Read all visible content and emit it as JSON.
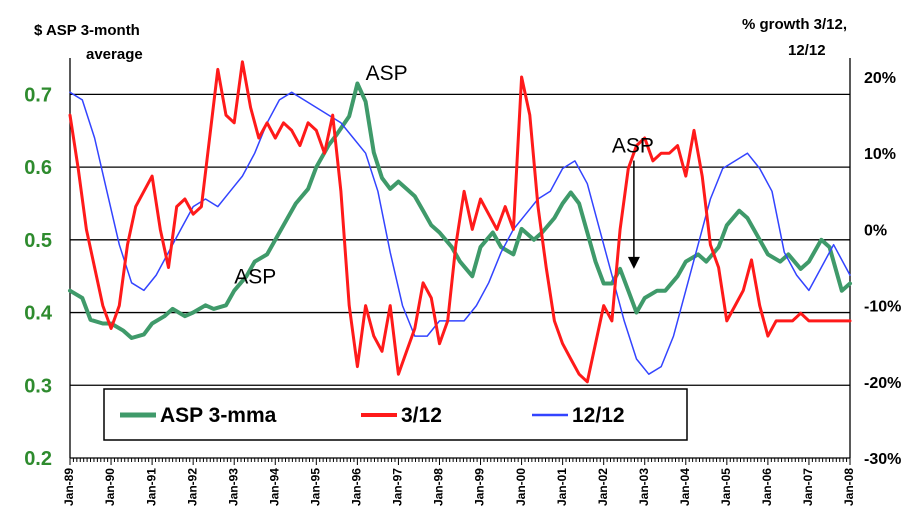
{
  "chart_data": {
    "type": "line",
    "title": "",
    "y_left_label": [
      "$ ASP 3-month",
      "average"
    ],
    "y_right_label": [
      "% growth 3/12,",
      "12/12"
    ],
    "xlabel": "",
    "y_left_lim": [
      0.2,
      0.75
    ],
    "y_left_ticks": [
      "0.2",
      "0.3",
      "0.4",
      "0.5",
      "0.6",
      "0.7"
    ],
    "y_right_lim": [
      -30,
      22.5
    ],
    "y_right_ticks": [
      "-30%",
      "-20%",
      "-10%",
      "0%",
      "10%",
      "20%"
    ],
    "x_ticks": [
      "Jan-89",
      "Jan-90",
      "Jan-91",
      "Jan-92",
      "Jan-93",
      "Jan-94",
      "Jan-95",
      "Jan-96",
      "Jan-97",
      "Jan-98",
      "Jan-99",
      "Jan-00",
      "Jan-01",
      "Jan-02",
      "Jan-03",
      "Jan-04",
      "Jan-05",
      "Jan-06",
      "Jan-07",
      "Jan-08"
    ],
    "x_range": [
      1989.0,
      2008.0
    ],
    "grid": "horizontal",
    "legend_position": "bottom-left",
    "colors": {
      "asp": "#3f9a6a",
      "g312": "#ff1a1a",
      "g1212": "#3344ff",
      "axis_left": "#2e8b2e"
    },
    "annotations": [
      {
        "text": "ASP",
        "x": 1996.2,
        "y": 0.72,
        "axis": "left"
      },
      {
        "text": "ASP",
        "x": 1993.0,
        "y": 0.44,
        "axis": "left"
      },
      {
        "text": "ASP",
        "x": 2002.2,
        "y": 0.62,
        "axis": "left",
        "arrow_to": 0.46
      }
    ],
    "series": [
      {
        "name": "ASP 3-mma",
        "axis": "left",
        "x": [
          1989.0,
          1989.3,
          1989.5,
          1989.8,
          1990.0,
          1990.3,
          1990.5,
          1990.8,
          1991.0,
          1991.3,
          1991.5,
          1991.8,
          1992.0,
          1992.3,
          1992.5,
          1992.8,
          1993.0,
          1993.3,
          1993.5,
          1993.8,
          1994.0,
          1994.3,
          1994.5,
          1994.8,
          1995.0,
          1995.3,
          1995.5,
          1995.8,
          1996.0,
          1996.2,
          1996.4,
          1996.6,
          1996.8,
          1997.0,
          1997.2,
          1997.4,
          1997.6,
          1997.8,
          1998.0,
          1998.3,
          1998.5,
          1998.8,
          1999.0,
          1999.3,
          1999.5,
          1999.8,
          2000.0,
          2000.3,
          2000.5,
          2000.8,
          2001.0,
          2001.2,
          2001.4,
          2001.6,
          2001.8,
          2002.0,
          2002.2,
          2002.4,
          2002.6,
          2002.8,
          2003.0,
          2003.3,
          2003.5,
          2003.8,
          2004.0,
          2004.3,
          2004.5,
          2004.8,
          2005.0,
          2005.3,
          2005.5,
          2005.8,
          2006.0,
          2006.3,
          2006.5,
          2006.8,
          2007.0,
          2007.3,
          2007.5,
          2007.8,
          2008.0
        ],
        "values": [
          0.43,
          0.42,
          0.39,
          0.385,
          0.385,
          0.375,
          0.365,
          0.37,
          0.385,
          0.395,
          0.405,
          0.395,
          0.4,
          0.41,
          0.405,
          0.41,
          0.43,
          0.45,
          0.47,
          0.48,
          0.5,
          0.53,
          0.55,
          0.57,
          0.6,
          0.63,
          0.645,
          0.67,
          0.715,
          0.69,
          0.62,
          0.585,
          0.57,
          0.58,
          0.57,
          0.56,
          0.54,
          0.52,
          0.51,
          0.49,
          0.47,
          0.45,
          0.49,
          0.51,
          0.49,
          0.48,
          0.515,
          0.5,
          0.51,
          0.53,
          0.55,
          0.565,
          0.55,
          0.51,
          0.47,
          0.44,
          0.44,
          0.46,
          0.43,
          0.4,
          0.42,
          0.43,
          0.43,
          0.45,
          0.47,
          0.48,
          0.47,
          0.49,
          0.52,
          0.54,
          0.53,
          0.5,
          0.48,
          0.47,
          0.48,
          0.46,
          0.47,
          0.5,
          0.49,
          0.43,
          0.44
        ]
      },
      {
        "name": "3/12",
        "axis": "right",
        "x": [
          1989.0,
          1989.2,
          1989.4,
          1989.6,
          1989.8,
          1990.0,
          1990.2,
          1990.4,
          1990.6,
          1990.8,
          1991.0,
          1991.2,
          1991.4,
          1991.6,
          1991.8,
          1992.0,
          1992.2,
          1992.4,
          1992.6,
          1992.8,
          1993.0,
          1993.2,
          1993.4,
          1993.6,
          1993.8,
          1994.0,
          1994.2,
          1994.4,
          1994.6,
          1994.8,
          1995.0,
          1995.2,
          1995.4,
          1995.6,
          1995.8,
          1996.0,
          1996.2,
          1996.4,
          1996.6,
          1996.8,
          1997.0,
          1997.2,
          1997.4,
          1997.6,
          1997.8,
          1998.0,
          1998.2,
          1998.4,
          1998.6,
          1998.8,
          1999.0,
          1999.2,
          1999.4,
          1999.6,
          1999.8,
          2000.0,
          2000.2,
          2000.4,
          2000.6,
          2000.8,
          2001.0,
          2001.2,
          2001.4,
          2001.6,
          2001.8,
          2002.0,
          2002.2,
          2002.4,
          2002.6,
          2002.8,
          2003.0,
          2003.2,
          2003.4,
          2003.6,
          2003.8,
          2004.0,
          2004.2,
          2004.4,
          2004.6,
          2004.8,
          2005.0,
          2005.2,
          2005.4,
          2005.6,
          2005.8,
          2006.0,
          2006.2,
          2006.4,
          2006.6,
          2006.8,
          2007.0,
          2007.2,
          2007.4,
          2007.6,
          2007.8,
          2008.0
        ],
        "values": [
          15,
          8,
          0,
          -5,
          -10,
          -13,
          -10,
          -2,
          3,
          5,
          7,
          0,
          -5,
          3,
          4,
          2,
          3,
          12,
          21,
          15,
          14,
          22,
          16,
          12,
          14,
          12,
          14,
          13,
          11,
          14,
          13,
          10,
          15,
          5,
          -10,
          -18,
          -10,
          -14,
          -16,
          -10,
          -19,
          -16,
          -13,
          -7,
          -9,
          -15,
          -12,
          -2,
          5,
          0,
          4,
          2,
          0,
          3,
          0,
          20,
          15,
          3,
          -5,
          -12,
          -15,
          -17,
          -19,
          -20,
          -15,
          -10,
          -12,
          0,
          8,
          11,
          12,
          9,
          10,
          10,
          11,
          7,
          13,
          7,
          -2,
          -5,
          -12,
          -10,
          -8,
          -4,
          -10,
          -14,
          -12,
          -12,
          -12,
          -11,
          -12,
          -12,
          -12,
          -12,
          -12,
          -12
        ]
      },
      {
        "name": "12/12",
        "axis": "right",
        "x": [
          1989.0,
          1989.3,
          1989.6,
          1989.9,
          1990.2,
          1990.5,
          1990.8,
          1991.1,
          1991.4,
          1991.7,
          1992.0,
          1992.3,
          1992.6,
          1992.9,
          1993.2,
          1993.5,
          1993.8,
          1994.1,
          1994.4,
          1994.7,
          1995.0,
          1995.3,
          1995.6,
          1995.9,
          1996.2,
          1996.5,
          1996.8,
          1997.1,
          1997.4,
          1997.7,
          1998.0,
          1998.3,
          1998.6,
          1998.9,
          1999.2,
          1999.5,
          1999.8,
          2000.1,
          2000.4,
          2000.7,
          2001.0,
          2001.3,
          2001.6,
          2001.9,
          2002.2,
          2002.5,
          2002.8,
          2003.1,
          2003.4,
          2003.7,
          2004.0,
          2004.3,
          2004.6,
          2004.9,
          2005.2,
          2005.5,
          2005.8,
          2006.1,
          2006.4,
          2006.7,
          2007.0,
          2007.3,
          2007.6,
          2007.9,
          2008.0
        ],
        "values": [
          18,
          17,
          12,
          5,
          -2,
          -7,
          -8,
          -6,
          -3,
          0,
          3,
          4,
          3,
          5,
          7,
          10,
          14,
          17,
          18,
          17,
          16,
          15,
          14,
          12,
          10,
          5,
          -3,
          -10,
          -14,
          -14,
          -12,
          -12,
          -12,
          -10,
          -7,
          -3,
          0,
          2,
          4,
          5,
          8,
          9,
          6,
          0,
          -6,
          -12,
          -17,
          -19,
          -18,
          -14,
          -8,
          -2,
          4,
          8,
          9,
          10,
          8,
          5,
          -3,
          -6,
          -8,
          -5,
          -2,
          -5,
          -6
        ]
      }
    ]
  }
}
